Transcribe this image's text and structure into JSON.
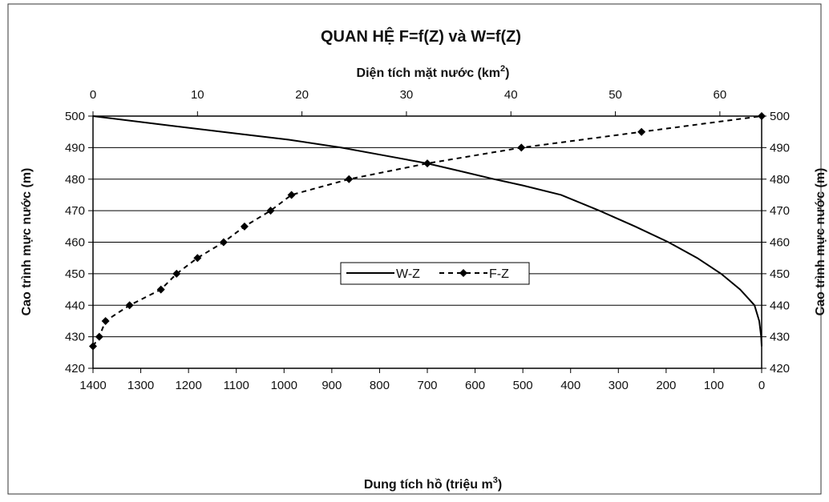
{
  "chart_data": {
    "type": "line",
    "title": "QUAN HỆ F=f(Z) và W=f(Z)",
    "x_bottom": {
      "label": "Dung tích hồ (triệu m³)",
      "label_main": "Dung tích hồ (triệu m",
      "label_sup": "3",
      "label_end": ")",
      "range": [
        1400,
        0
      ],
      "ticks": [
        1400,
        1300,
        1200,
        1100,
        1000,
        900,
        800,
        700,
        600,
        500,
        400,
        300,
        200,
        100,
        0
      ]
    },
    "x_top": {
      "label": "Diện tích mặt nước (km²)",
      "label_main": "Diện tích mặt nước (km",
      "label_sup": "2",
      "label_end": ")",
      "range": [
        0,
        64
      ],
      "ticks": [
        0,
        10,
        20,
        30,
        40,
        50,
        60
      ]
    },
    "y": {
      "label_left": "Cao trình mực nước (m)",
      "label_right": "Cao trình mực nước (m)",
      "range": [
        420,
        500
      ],
      "ticks": [
        420,
        430,
        440,
        450,
        460,
        470,
        480,
        490,
        500
      ]
    },
    "grid": "horizontal",
    "legend": {
      "position": "center",
      "entries": [
        "W-Z",
        "F-Z"
      ]
    },
    "series": [
      {
        "name": "W-Z",
        "axis": "bottom",
        "style": "solid",
        "points": [
          [
            0,
            427
          ],
          [
            1,
            430
          ],
          [
            5,
            435
          ],
          [
            15,
            440
          ],
          [
            45,
            445
          ],
          [
            85,
            450
          ],
          [
            135,
            455
          ],
          [
            195,
            460
          ],
          [
            265,
            465
          ],
          [
            340,
            470
          ],
          [
            420,
            475
          ],
          [
            500,
            478
          ],
          [
            560,
            480
          ],
          [
            630,
            482.5
          ],
          [
            700,
            485
          ],
          [
            790,
            487.5
          ],
          [
            880,
            490
          ],
          [
            990,
            492.5
          ],
          [
            1100,
            494.5
          ],
          [
            1240,
            497
          ],
          [
            1400,
            500
          ]
        ]
      },
      {
        "name": "F-Z",
        "axis": "top",
        "style": "dashed",
        "markers": "diamond",
        "points": [
          [
            0,
            427
          ],
          [
            0.6,
            430
          ],
          [
            1.2,
            435
          ],
          [
            3.5,
            440
          ],
          [
            6.5,
            445
          ],
          [
            8,
            450
          ],
          [
            10,
            455
          ],
          [
            12.5,
            460
          ],
          [
            14.5,
            465
          ],
          [
            17,
            470
          ],
          [
            19,
            475
          ],
          [
            24.5,
            480
          ],
          [
            32,
            485
          ],
          [
            41,
            490
          ],
          [
            52.5,
            495
          ],
          [
            64,
            500
          ]
        ]
      }
    ]
  }
}
